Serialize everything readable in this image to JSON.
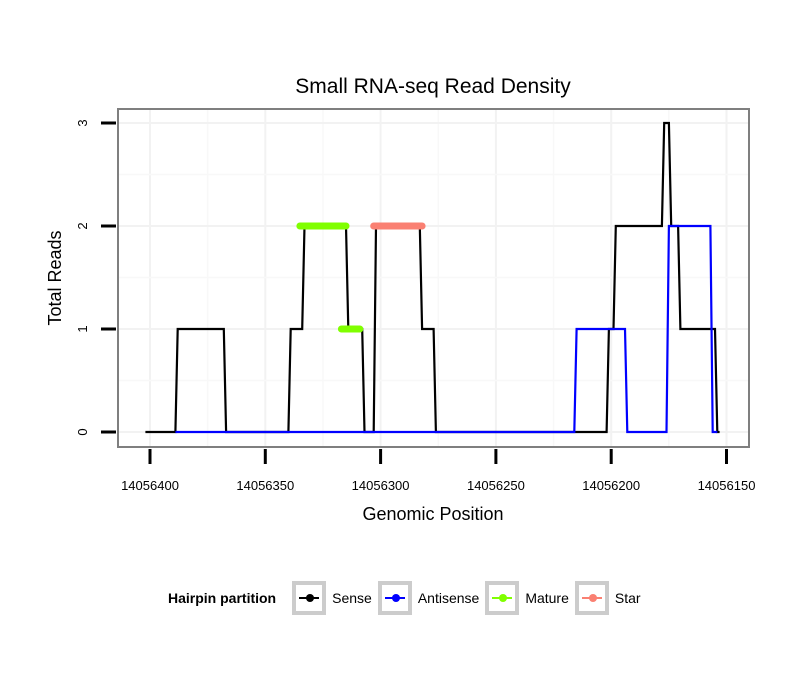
{
  "chart_data": {
    "type": "line",
    "title": "Small RNA-seq Read Density",
    "xlabel": "Genomic Position",
    "ylabel": "Total Reads",
    "xlim": [
      14056405,
      14056145
    ],
    "x_reversed": true,
    "ylim": [
      -0.15,
      3.15
    ],
    "x_ticks": [
      14056400,
      14056350,
      14056300,
      14056250,
      14056200,
      14056150
    ],
    "x_tick_labels": [
      "14056400",
      "14056350",
      "14056300",
      "14056250",
      "14056200",
      "14056150"
    ],
    "y_ticks": [
      0,
      1,
      2,
      3
    ],
    "y_tick_labels": [
      "0",
      "1",
      "2",
      "3"
    ],
    "grid": true,
    "legend": {
      "title": "Hairpin partition",
      "position": "bottom",
      "entries": [
        "Sense",
        "Antisense",
        "Mature",
        "Star"
      ]
    },
    "series": [
      {
        "name": "Sense",
        "color": "#000000",
        "points": [
          [
            14056402,
            0
          ],
          [
            14056389,
            0
          ],
          [
            14056388,
            1
          ],
          [
            14056368,
            1
          ],
          [
            14056367,
            0
          ],
          [
            14056340,
            0
          ],
          [
            14056339,
            1
          ],
          [
            14056334,
            1
          ],
          [
            14056333,
            2
          ],
          [
            14056315,
            2
          ],
          [
            14056314,
            1
          ],
          [
            14056308,
            1
          ],
          [
            14056307,
            0
          ],
          [
            14056303,
            0
          ],
          [
            14056302,
            2
          ],
          [
            14056283,
            2
          ],
          [
            14056282,
            1
          ],
          [
            14056277,
            1
          ],
          [
            14056276,
            0
          ],
          [
            14056202,
            0
          ],
          [
            14056201,
            1
          ],
          [
            14056199,
            1
          ],
          [
            14056198,
            2
          ],
          [
            14056178,
            2
          ],
          [
            14056177,
            3
          ],
          [
            14056175,
            3
          ],
          [
            14056174,
            2
          ],
          [
            14056171,
            2
          ],
          [
            14056170,
            1
          ],
          [
            14056155,
            1
          ],
          [
            14056154,
            0
          ],
          [
            14056153,
            0
          ]
        ]
      },
      {
        "name": "Antisense",
        "color": "#0000ff",
        "points": [
          [
            14056389,
            0
          ],
          [
            14056367,
            0
          ],
          [
            14056340,
            0
          ],
          [
            14056308,
            0
          ],
          [
            14056303,
            0
          ],
          [
            14056276,
            0
          ],
          [
            14056216,
            0
          ],
          [
            14056215,
            1
          ],
          [
            14056194,
            1
          ],
          [
            14056193,
            0
          ],
          [
            14056176,
            0
          ],
          [
            14056175,
            2
          ],
          [
            14056157,
            2
          ],
          [
            14056156,
            0
          ],
          [
            14056154,
            0
          ]
        ]
      },
      {
        "name": "Mature",
        "color": "#80ff00",
        "segments": [
          {
            "x": [
              14056335,
              14056315
            ],
            "y": 2
          },
          {
            "x": [
              14056317,
              14056309
            ],
            "y": 1
          }
        ]
      },
      {
        "name": "Star",
        "color": "#fa8072",
        "segments": [
          {
            "x": [
              14056303,
              14056282
            ],
            "y": 2
          }
        ]
      }
    ]
  }
}
